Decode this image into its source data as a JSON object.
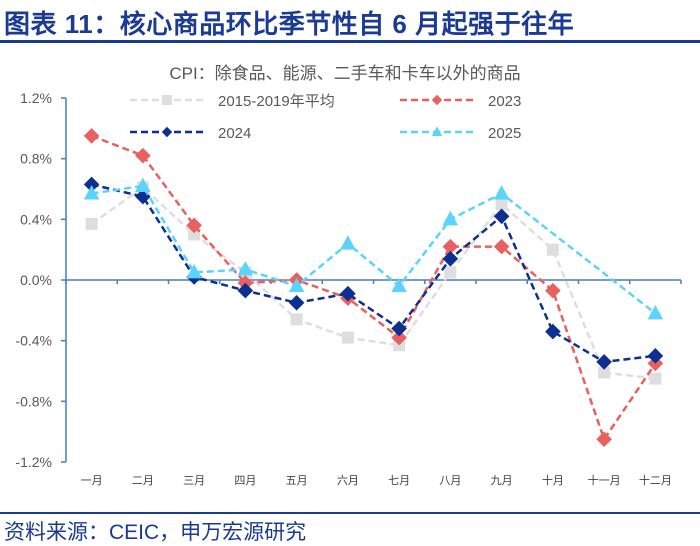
{
  "header": {
    "title": "图表 11：核心商品环比季节性自 6 月起强于往年"
  },
  "footer": {
    "source": "资料来源：CEIC，申万宏源研究"
  },
  "chart_data": {
    "type": "line",
    "title": "CPI：除食品、能源、二手车和卡车以外的商品",
    "xlabel": "",
    "ylabel": "",
    "categories": [
      "一月",
      "二月",
      "三月",
      "四月",
      "五月",
      "六月",
      "七月",
      "八月",
      "九月",
      "十月",
      "十一月",
      "十二月"
    ],
    "ylim": [
      -1.2,
      1.2
    ],
    "yticks": [
      1.2,
      0.8,
      0.4,
      0.0,
      -0.4,
      -0.8,
      -1.2
    ],
    "ytick_labels": [
      "1.2%",
      "0.8%",
      "0.4%",
      "0.0%",
      "-0.4%",
      "-0.8%",
      "-1.2%"
    ],
    "grid": false,
    "legend": "top",
    "series": [
      {
        "name": "2015-2019年平均",
        "color": "#dedede",
        "marker": "square",
        "values": [
          0.37,
          0.61,
          0.3,
          0.05,
          -0.26,
          -0.38,
          -0.43,
          0.05,
          0.5,
          0.2,
          -0.61,
          -0.65
        ]
      },
      {
        "name": "2023",
        "color": "#e8605f",
        "marker": "diamond",
        "values": [
          0.95,
          0.82,
          0.36,
          -0.02,
          0.0,
          -0.12,
          -0.38,
          0.22,
          0.22,
          -0.07,
          -1.05,
          -0.55
        ]
      },
      {
        "name": "2024",
        "color": "#0d2f8f",
        "marker": "diamond",
        "values": [
          0.63,
          0.55,
          0.02,
          -0.07,
          -0.15,
          -0.09,
          -0.32,
          0.14,
          0.42,
          -0.34,
          -0.54,
          -0.5
        ]
      },
      {
        "name": "2025",
        "color": "#5bd3fb",
        "marker": "triangle",
        "values": [
          0.57,
          0.62,
          0.05,
          0.07,
          -0.04,
          0.24,
          -0.04,
          0.4,
          0.57,
          null,
          null,
          -0.22
        ]
      }
    ]
  }
}
